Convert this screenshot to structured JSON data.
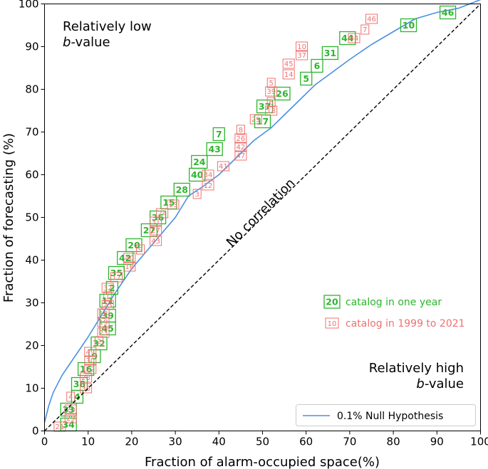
{
  "chart_data": {
    "type": "scatter",
    "xlabel": "Fraction of alarm-occupied space(%)",
    "ylabel": "Fraction of forecasting (%)",
    "xlim": [
      0,
      100
    ],
    "ylim": [
      0,
      100
    ],
    "x_ticks": [
      "0",
      "10",
      "20",
      "30",
      "40",
      "50",
      "60",
      "70",
      "80",
      "90",
      "100"
    ],
    "y_ticks": [
      "0",
      "10",
      "20",
      "30",
      "40",
      "50",
      "60",
      "70",
      "80",
      "90",
      "100"
    ],
    "colors": {
      "green": "#2db52d",
      "red": "#f07070",
      "null_line": "#4a90e2"
    },
    "annotations": {
      "low_b_line1": "Relatively low",
      "low_b_italic": "b",
      "low_b_rest": "-value",
      "high_b_line1": "Relatively high",
      "high_b_italic": "b",
      "high_b_rest": "-value",
      "diagonal": "No correlation"
    },
    "legend": {
      "items": [
        {
          "marker": "20",
          "label": "catalog in one year",
          "color": "#2db52d"
        },
        {
          "marker": "10",
          "label": "catalog in 1999 to 2021",
          "color": "#f07070"
        }
      ],
      "line_label": "0.1% Null Hypothesis"
    },
    "null_hypothesis": {
      "name": "0.1% Null Hypothesis",
      "x": [
        0,
        1,
        2,
        4,
        6,
        8,
        10,
        13,
        16,
        20,
        25,
        30,
        33,
        36,
        40,
        44,
        48,
        50,
        52,
        55,
        58,
        62,
        66,
        70,
        75,
        80,
        85,
        90,
        95,
        100
      ],
      "y": [
        2,
        6,
        9,
        13,
        16,
        19,
        22,
        27,
        32,
        38,
        44,
        50,
        55,
        57,
        60,
        64,
        68,
        69.5,
        71,
        74,
        77,
        81,
        84,
        87,
        90.5,
        93.5,
        96.5,
        98,
        99,
        101
      ]
    },
    "series": [
      {
        "name": "catalog in one year",
        "points": [
          {
            "x": 92.5,
            "y": 98,
            "label": "46"
          },
          {
            "x": 83.5,
            "y": 95,
            "label": "10"
          },
          {
            "x": 69.5,
            "y": 92,
            "label": "44"
          },
          {
            "x": 65.5,
            "y": 88.5,
            "label": "31"
          },
          {
            "x": 62.5,
            "y": 85.5,
            "label": "6"
          },
          {
            "x": 60.0,
            "y": 82.5,
            "label": "5"
          },
          {
            "x": 54.5,
            "y": 79,
            "label": "26"
          },
          {
            "x": 50.5,
            "y": 76,
            "label": "37"
          },
          {
            "x": 50.0,
            "y": 72.5,
            "label": "17"
          },
          {
            "x": 40.0,
            "y": 69.5,
            "label": "7"
          },
          {
            "x": 39.0,
            "y": 66,
            "label": "43"
          },
          {
            "x": 35.5,
            "y": 63,
            "label": "24"
          },
          {
            "x": 35.0,
            "y": 60,
            "label": "40"
          },
          {
            "x": 31.5,
            "y": 56.5,
            "label": "28"
          },
          {
            "x": 28.5,
            "y": 53.5,
            "label": "15"
          },
          {
            "x": 26.0,
            "y": 50,
            "label": "36"
          },
          {
            "x": 24.0,
            "y": 47,
            "label": "27"
          },
          {
            "x": 20.5,
            "y": 43.5,
            "label": "20"
          },
          {
            "x": 18.5,
            "y": 40.5,
            "label": "42"
          },
          {
            "x": 16.5,
            "y": 37,
            "label": "35"
          },
          {
            "x": 15.5,
            "y": 33.5,
            "label": "2"
          },
          {
            "x": 14.5,
            "y": 30.5,
            "label": "11"
          },
          {
            "x": 14.5,
            "y": 27,
            "label": "39"
          },
          {
            "x": 14.5,
            "y": 24,
            "label": "45"
          },
          {
            "x": 12.5,
            "y": 20.5,
            "label": "32"
          },
          {
            "x": 11.5,
            "y": 17.5,
            "label": "9"
          },
          {
            "x": 9.5,
            "y": 14.5,
            "label": "16"
          },
          {
            "x": 8.0,
            "y": 11,
            "label": "38"
          },
          {
            "x": 7.5,
            "y": 8,
            "label": "4"
          },
          {
            "x": 5.5,
            "y": 5,
            "label": "33"
          },
          {
            "x": 5.5,
            "y": 1.5,
            "label": "34"
          }
        ]
      },
      {
        "name": "catalog in 1999 to 2021",
        "points": [
          {
            "x": 75.0,
            "y": 96.5,
            "label": "46"
          },
          {
            "x": 73.5,
            "y": 94,
            "label": "7"
          },
          {
            "x": 71.0,
            "y": 92,
            "label": "44"
          },
          {
            "x": 59.0,
            "y": 90,
            "label": "10"
          },
          {
            "x": 59.0,
            "y": 88,
            "label": "37"
          },
          {
            "x": 56.0,
            "y": 86,
            "label": "45"
          },
          {
            "x": 56.0,
            "y": 83.5,
            "label": "14"
          },
          {
            "x": 52.0,
            "y": 81.5,
            "label": "5"
          },
          {
            "x": 52.0,
            "y": 79.5,
            "label": "39"
          },
          {
            "x": 52.0,
            "y": 77,
            "label": "6"
          },
          {
            "x": 52.0,
            "y": 75,
            "label": "18"
          },
          {
            "x": 48.5,
            "y": 73,
            "label": "29"
          },
          {
            "x": 45.0,
            "y": 70.5,
            "label": "8"
          },
          {
            "x": 45.0,
            "y": 68.5,
            "label": "26"
          },
          {
            "x": 45.0,
            "y": 66.5,
            "label": "42"
          },
          {
            "x": 45.0,
            "y": 64.5,
            "label": "47"
          },
          {
            "x": 41.0,
            "y": 62,
            "label": "41"
          },
          {
            "x": 37.5,
            "y": 60,
            "label": "34"
          },
          {
            "x": 37.5,
            "y": 57.5,
            "label": "12"
          },
          {
            "x": 35.0,
            "y": 55.5,
            "label": "3"
          },
          {
            "x": 29.5,
            "y": 53,
            "label": "13"
          },
          {
            "x": 27.0,
            "y": 51,
            "label": "24"
          },
          {
            "x": 25.5,
            "y": 49,
            "label": "31"
          },
          {
            "x": 25.5,
            "y": 47,
            "label": "27"
          },
          {
            "x": 25.5,
            "y": 44.5,
            "label": "43"
          },
          {
            "x": 22.0,
            "y": 42.5,
            "label": "9"
          },
          {
            "x": 19.5,
            "y": 40.5,
            "label": "40"
          },
          {
            "x": 19.5,
            "y": 38.5,
            "label": "16"
          },
          {
            "x": 16.5,
            "y": 36,
            "label": "17"
          },
          {
            "x": 14.5,
            "y": 33.5,
            "label": "32"
          },
          {
            "x": 14.5,
            "y": 31.5,
            "label": "1"
          },
          {
            "x": 14.5,
            "y": 29.5,
            "label": "25"
          },
          {
            "x": 13.5,
            "y": 27.5,
            "label": "18"
          },
          {
            "x": 13.5,
            "y": 25.5,
            "label": "19"
          },
          {
            "x": 13.5,
            "y": 23,
            "label": "23"
          },
          {
            "x": 12.5,
            "y": 21,
            "label": "2"
          },
          {
            "x": 10.5,
            "y": 18.5,
            "label": "49"
          },
          {
            "x": 10.5,
            "y": 16.5,
            "label": "30"
          },
          {
            "x": 10.5,
            "y": 14.5,
            "label": "22"
          },
          {
            "x": 9.5,
            "y": 12.5,
            "label": "28"
          },
          {
            "x": 9.5,
            "y": 10,
            "label": "38"
          },
          {
            "x": 6.0,
            "y": 8,
            "label": "4"
          },
          {
            "x": 6.0,
            "y": 5,
            "label": "20"
          },
          {
            "x": 6.0,
            "y": 3,
            "label": "29"
          },
          {
            "x": 3.5,
            "y": 1,
            "label": "21"
          }
        ]
      }
    ]
  }
}
